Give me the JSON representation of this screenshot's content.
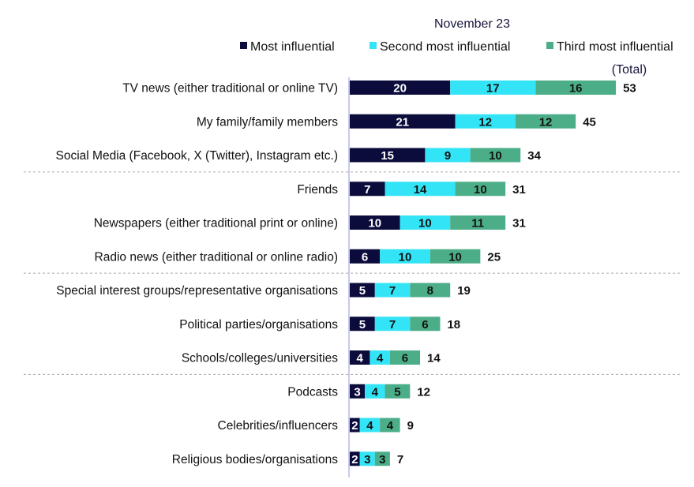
{
  "chart_data": {
    "type": "bar",
    "orientation": "horizontal",
    "stacked": true,
    "title": "November  23",
    "total_label": "(Total)",
    "xlabel": "",
    "ylabel": "",
    "legend_position": "top",
    "grid": false,
    "categories": [
      "TV news (either traditional or online TV)",
      "My family/family members",
      "Social Media (Facebook, X (Twitter), Instagram etc.)",
      "Friends",
      "Newspapers (either traditional print or online)",
      "Radio news (either traditional or online radio)",
      "Special interest groups/representative organisations",
      "Political parties/organisations",
      "Schools/colleges/universities",
      "Podcasts",
      "Celebrities/influencers",
      "Religious bodies/organisations"
    ],
    "series": [
      {
        "name": "Most influential",
        "color": "#0c0c3c",
        "label_color": "#ffffff",
        "values": [
          20,
          21,
          15,
          7,
          10,
          6,
          5,
          5,
          4,
          3,
          2,
          2
        ]
      },
      {
        "name": "Second most influential",
        "color": "#33e4f6",
        "label_color": "#111111",
        "values": [
          17,
          12,
          9,
          14,
          10,
          10,
          7,
          7,
          4,
          4,
          4,
          3
        ]
      },
      {
        "name": "Third most influential",
        "color": "#4cae88",
        "label_color": "#111111",
        "values": [
          16,
          12,
          10,
          10,
          11,
          10,
          8,
          6,
          6,
          5,
          4,
          3
        ]
      }
    ],
    "totals": [
      53,
      45,
      34,
      31,
      31,
      25,
      19,
      18,
      14,
      12,
      9,
      7
    ],
    "group_separators_after": [
      2,
      5,
      8
    ]
  }
}
